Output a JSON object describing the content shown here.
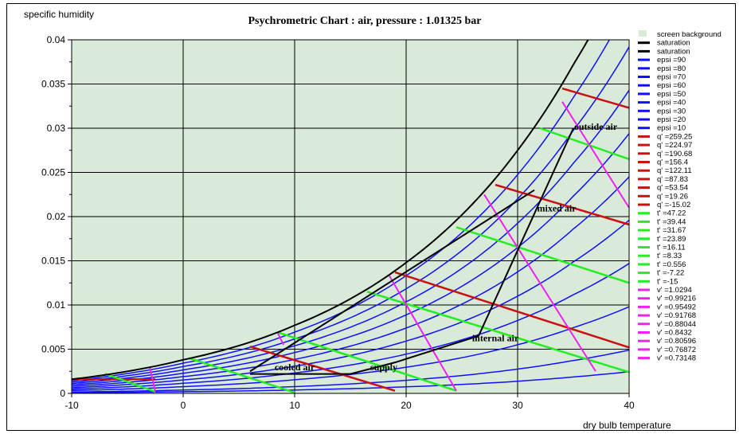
{
  "chart_data": {
    "type": "line",
    "title": "Psychrometric Chart : air,  pressure : 1.01325 bar",
    "xlabel": "dry bulb temperature",
    "ylabel": "specific humidity",
    "xlim": [
      -10,
      40
    ],
    "ylim": [
      0,
      0.04
    ],
    "x_ticks": [
      "-10",
      "0",
      "10",
      "20",
      "30",
      "40"
    ],
    "y_ticks": [
      "0",
      "0.005",
      "0.01",
      "0.015",
      "0.02",
      "0.025",
      "0.03",
      "0.035",
      "0.04"
    ],
    "grid": true,
    "background": "#d9ead9",
    "legend_position": "right",
    "legend": [
      {
        "label": "screen background",
        "color": "#d9ead9",
        "swatch": "box"
      },
      {
        "label": "saturation",
        "color": "#000000"
      },
      {
        "label": "saturation",
        "color": "#000000"
      },
      {
        "label": "epsi =90",
        "color": "#1010ff"
      },
      {
        "label": "epsi =80",
        "color": "#1010ff"
      },
      {
        "label": "epsi =70",
        "color": "#1010ff"
      },
      {
        "label": "epsi =60",
        "color": "#1010ff"
      },
      {
        "label": "epsi =50",
        "color": "#1010ff"
      },
      {
        "label": "epsi =40",
        "color": "#1010ff"
      },
      {
        "label": "epsi =30",
        "color": "#1010ff"
      },
      {
        "label": "epsi =20",
        "color": "#1010ff"
      },
      {
        "label": "epsi =10",
        "color": "#1010ff"
      },
      {
        "label": "q' =259.25",
        "color": "#cc1010"
      },
      {
        "label": "q' =224.97",
        "color": "#cc1010"
      },
      {
        "label": "q' =190.68",
        "color": "#cc1010"
      },
      {
        "label": "q' =156.4",
        "color": "#cc1010"
      },
      {
        "label": "q' =122.11",
        "color": "#cc1010"
      },
      {
        "label": "q' =87.83",
        "color": "#cc1010"
      },
      {
        "label": "q' =53.54",
        "color": "#cc1010"
      },
      {
        "label": "q' =19.26",
        "color": "#cc1010"
      },
      {
        "label": "q' =-15.02",
        "color": "#cc1010"
      },
      {
        "label": "t' =47.22",
        "color": "#22ee22"
      },
      {
        "label": "t' =39.44",
        "color": "#22ee22"
      },
      {
        "label": "t' =31.67",
        "color": "#22ee22"
      },
      {
        "label": "t' =23.89",
        "color": "#22ee22"
      },
      {
        "label": "t' =16.11",
        "color": "#22ee22"
      },
      {
        "label": "t' =8.33",
        "color": "#22ee22"
      },
      {
        "label": "t' =0.556",
        "color": "#22ee22"
      },
      {
        "label": "t' =-7.22",
        "color": "#22ee22"
      },
      {
        "label": "t' =-15",
        "color": "#22ee22"
      },
      {
        "label": "v' =1.0294",
        "color": "#ee22ee"
      },
      {
        "label": "v' =0.99216",
        "color": "#ee22ee"
      },
      {
        "label": "v' =0.95492",
        "color": "#ee22ee"
      },
      {
        "label": "v' =0.91768",
        "color": "#ee22ee"
      },
      {
        "label": "v' =0.88044",
        "color": "#ee22ee"
      },
      {
        "label": "v' =0.8432",
        "color": "#ee22ee"
      },
      {
        "label": "v' =0.80596",
        "color": "#ee22ee"
      },
      {
        "label": "v' =0.76872",
        "color": "#ee22ee"
      },
      {
        "label": "v' =0.73148",
        "color": "#ee22ee"
      }
    ],
    "saturation": {
      "color": "#000000",
      "x": [
        -10,
        -5,
        0,
        5,
        10,
        15,
        20,
        25,
        30,
        35,
        40
      ],
      "y": [
        0.0016,
        0.0025,
        0.0038,
        0.0054,
        0.0077,
        0.0107,
        0.0148,
        0.0202,
        0.0275,
        0.0372,
        0.049
      ]
    },
    "rh_series": {
      "color": "#1010ff",
      "fractions": [
        0.9,
        0.8,
        0.7,
        0.6,
        0.5,
        0.4,
        0.3,
        0.2,
        0.1
      ]
    },
    "enthalpy_series": {
      "color": "#cc1010",
      "lines": [
        {
          "x": [
            -10,
            -2.5
          ],
          "y": [
            0.0016,
            0.0016
          ]
        },
        {
          "x": [
            6,
            19
          ],
          "y": [
            0.0053,
            0.0003
          ]
        },
        {
          "x": [
            19,
            40
          ],
          "y": [
            0.0137,
            0.0052
          ]
        },
        {
          "x": [
            28,
            40
          ],
          "y": [
            0.0236,
            0.0191
          ]
        },
        {
          "x": [
            34,
            40
          ],
          "y": [
            0.0345,
            0.0323
          ]
        }
      ]
    },
    "wetbulb_series": {
      "color": "#22ee22",
      "lines": [
        {
          "x": [
            -7,
            -2.5
          ],
          "y": [
            0.0022,
            0.0002
          ]
        },
        {
          "x": [
            0.5,
            10
          ],
          "y": [
            0.004,
            0.0001
          ]
        },
        {
          "x": [
            8.5,
            24.5
          ],
          "y": [
            0.0069,
            0.0003
          ]
        },
        {
          "x": [
            16.5,
            40
          ],
          "y": [
            0.0115,
            0.0024
          ]
        },
        {
          "x": [
            24.5,
            40
          ],
          "y": [
            0.0188,
            0.0125
          ]
        },
        {
          "x": [
            32,
            40
          ],
          "y": [
            0.03,
            0.0265
          ]
        }
      ]
    },
    "volume_series": {
      "color": "#ee22ee",
      "lines": [
        {
          "x": [
            -3,
            -2.5
          ],
          "y": [
            0.003,
            0.0002
          ]
        },
        {
          "x": [
            8.5,
            9
          ],
          "y": [
            0.0068,
            0.0055
          ]
        },
        {
          "x": [
            18.5,
            24.5
          ],
          "y": [
            0.0133,
            0.0003
          ]
        },
        {
          "x": [
            27,
            37
          ],
          "y": [
            0.0225,
            0.0025
          ]
        },
        {
          "x": [
            34,
            40
          ],
          "y": [
            0.033,
            0.021
          ]
        }
      ]
    },
    "process_path": {
      "color": "#000000",
      "x": [
        6,
        15,
        19,
        26.5,
        35
      ],
      "y": [
        0.0022,
        0.0022,
        0.0035,
        0.0065,
        0.03
      ]
    },
    "mixing_line": {
      "color": "#000000",
      "x": [
        6,
        31.5
      ],
      "y": [
        0.0025,
        0.023
      ]
    },
    "annotations": [
      {
        "text": "outside air",
        "x": 37,
        "y": 0.0298
      },
      {
        "text": "mixed air",
        "x": 33.5,
        "y": 0.0206
      },
      {
        "text": "internal air",
        "x": 28,
        "y": 0.0059
      },
      {
        "text": "supply",
        "x": 18,
        "y": 0.0026
      },
      {
        "text": "cooled air",
        "x": 10,
        "y": 0.0026
      }
    ]
  }
}
